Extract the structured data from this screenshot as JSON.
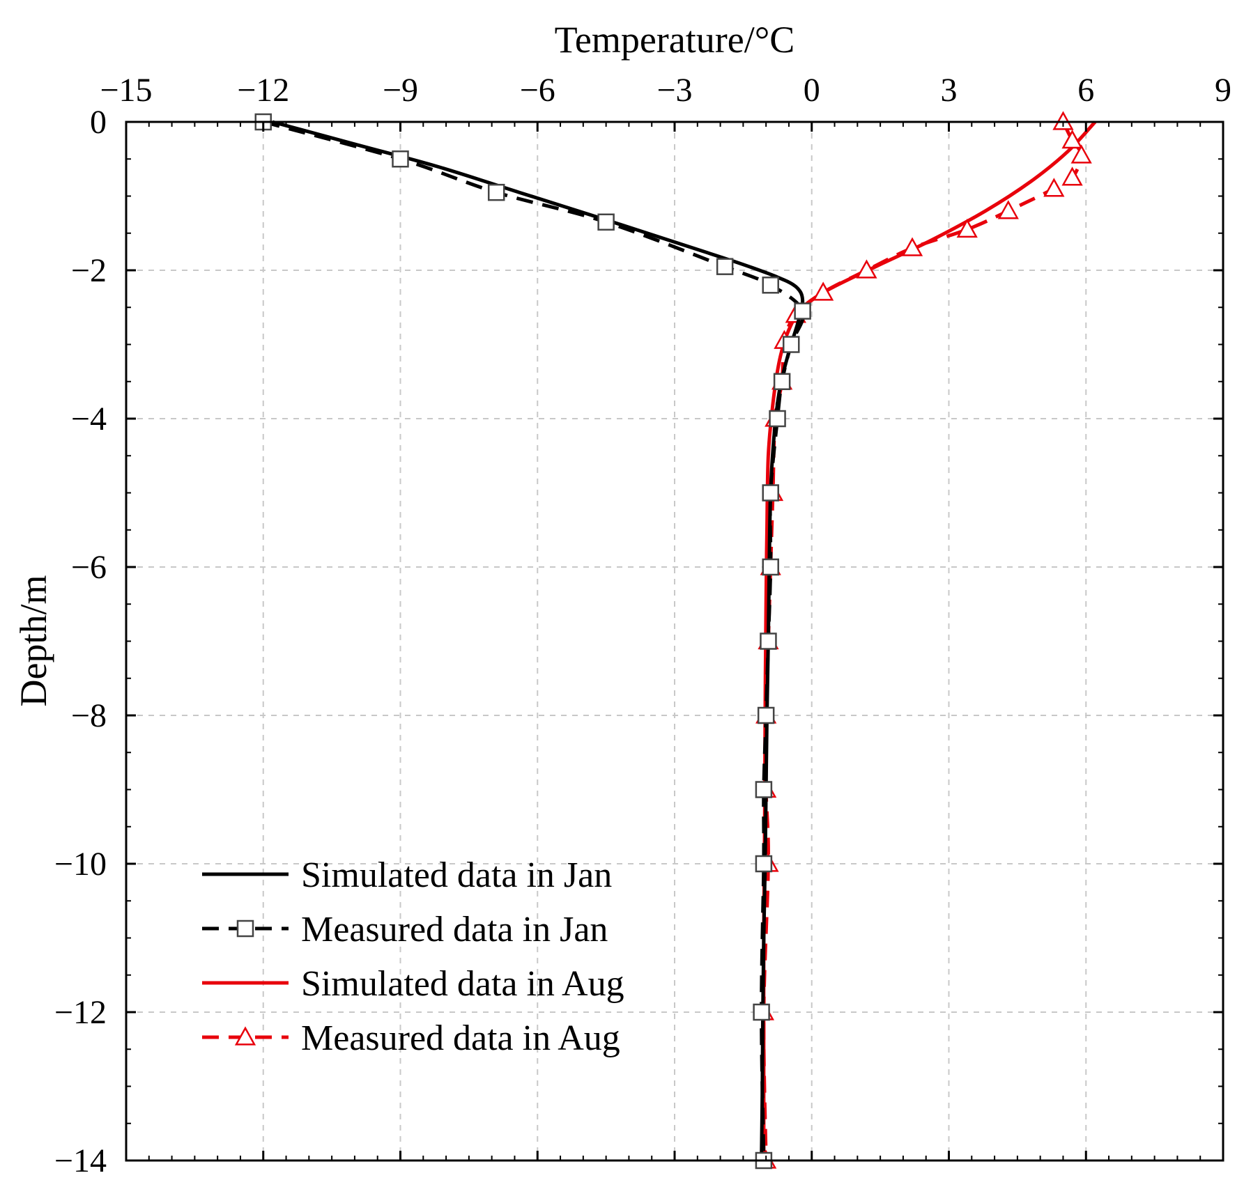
{
  "chart_data": {
    "type": "line",
    "title": "",
    "xlabel": "Temperature/°C",
    "ylabel": "Depth/m",
    "xlim": [
      -15,
      9
    ],
    "ylim": [
      -14,
      0
    ],
    "xticks": [
      -15,
      -12,
      -9,
      -6,
      -3,
      0,
      3,
      6,
      9
    ],
    "xtick_labels": [
      "−15",
      "−12",
      "−9",
      "−6",
      "−3",
      "0",
      "3",
      "6",
      "9"
    ],
    "yticks": [
      0,
      -2,
      -4,
      -6,
      -8,
      -10,
      -12,
      -14
    ],
    "ytick_labels": [
      "0",
      "−2",
      "−4",
      "−6",
      "−8",
      "−10",
      "−12",
      "−14"
    ],
    "x_axis_position": "top",
    "grid": true,
    "legend_position": "bottom-left",
    "series": [
      {
        "name": "Simulated data in Jan",
        "color": "#000000",
        "line_style": "solid",
        "marker": "none",
        "points": [
          {
            "x": -11.8,
            "y": 0
          },
          {
            "x": -10.0,
            "y": -0.3
          },
          {
            "x": -8.2,
            "y": -0.6
          },
          {
            "x": -6.4,
            "y": -0.95
          },
          {
            "x": -4.6,
            "y": -1.3
          },
          {
            "x": -3.0,
            "y": -1.62
          },
          {
            "x": -1.7,
            "y": -1.88
          },
          {
            "x": -0.8,
            "y": -2.08
          },
          {
            "x": -0.35,
            "y": -2.22
          },
          {
            "x": -0.2,
            "y": -2.4
          },
          {
            "x": -0.3,
            "y": -2.7
          },
          {
            "x": -0.5,
            "y": -3.1
          },
          {
            "x": -0.7,
            "y": -3.6
          },
          {
            "x": -0.82,
            "y": -4.2
          },
          {
            "x": -0.9,
            "y": -5.0
          },
          {
            "x": -0.93,
            "y": -6.0
          },
          {
            "x": -0.95,
            "y": -7.0
          },
          {
            "x": -0.98,
            "y": -8.0
          },
          {
            "x": -1.0,
            "y": -9.0
          },
          {
            "x": -1.02,
            "y": -10.0
          },
          {
            "x": -1.05,
            "y": -11.0
          },
          {
            "x": -1.07,
            "y": -12.0
          },
          {
            "x": -1.08,
            "y": -13.0
          },
          {
            "x": -1.1,
            "y": -14.0
          }
        ]
      },
      {
        "name": "Measured data in Jan",
        "color": "#000000",
        "line_style": "dashed",
        "marker": "square",
        "points": [
          {
            "x": -12.0,
            "y": 0
          },
          {
            "x": -9.0,
            "y": -0.5
          },
          {
            "x": -6.9,
            "y": -0.95
          },
          {
            "x": -4.5,
            "y": -1.35
          },
          {
            "x": -1.9,
            "y": -1.95
          },
          {
            "x": -0.9,
            "y": -2.2
          },
          {
            "x": -0.2,
            "y": -2.55
          },
          {
            "x": -0.45,
            "y": -3.0
          },
          {
            "x": -0.65,
            "y": -3.5
          },
          {
            "x": -0.75,
            "y": -4.0
          },
          {
            "x": -0.9,
            "y": -5.0
          },
          {
            "x": -0.9,
            "y": -6.0
          },
          {
            "x": -0.95,
            "y": -7.0
          },
          {
            "x": -1.0,
            "y": -8.0
          },
          {
            "x": -1.05,
            "y": -9.0
          },
          {
            "x": -1.05,
            "y": -10.0
          },
          {
            "x": -1.1,
            "y": -12.0
          },
          {
            "x": -1.05,
            "y": -14.0
          }
        ]
      },
      {
        "name": "Simulated data in Aug",
        "color": "#e8000b",
        "line_style": "solid",
        "marker": "none",
        "points": [
          {
            "x": 6.2,
            "y": 0
          },
          {
            "x": 5.6,
            "y": -0.4
          },
          {
            "x": 4.8,
            "y": -0.8
          },
          {
            "x": 3.8,
            "y": -1.2
          },
          {
            "x": 2.6,
            "y": -1.6
          },
          {
            "x": 1.4,
            "y": -1.95
          },
          {
            "x": 0.4,
            "y": -2.25
          },
          {
            "x": -0.2,
            "y": -2.5
          },
          {
            "x": -0.5,
            "y": -2.8
          },
          {
            "x": -0.7,
            "y": -3.2
          },
          {
            "x": -0.85,
            "y": -3.8
          },
          {
            "x": -0.95,
            "y": -4.5
          },
          {
            "x": -0.98,
            "y": -5.5
          },
          {
            "x": -1.0,
            "y": -6.5
          },
          {
            "x": -1.02,
            "y": -8.0
          },
          {
            "x": -1.03,
            "y": -9.5
          },
          {
            "x": -1.05,
            "y": -11.0
          },
          {
            "x": -1.05,
            "y": -12.5
          },
          {
            "x": -1.05,
            "y": -14.0
          }
        ]
      },
      {
        "name": "Measured data in Aug",
        "color": "#e8000b",
        "line_style": "dashed",
        "marker": "triangle",
        "points": [
          {
            "x": 5.5,
            "y": 0
          },
          {
            "x": 5.7,
            "y": -0.25
          },
          {
            "x": 5.9,
            "y": -0.45
          },
          {
            "x": 5.7,
            "y": -0.75
          },
          {
            "x": 5.3,
            "y": -0.9
          },
          {
            "x": 4.3,
            "y": -1.2
          },
          {
            "x": 3.4,
            "y": -1.45
          },
          {
            "x": 2.2,
            "y": -1.7
          },
          {
            "x": 1.2,
            "y": -2.0
          },
          {
            "x": 0.25,
            "y": -2.3
          },
          {
            "x": -0.35,
            "y": -2.6
          },
          {
            "x": -0.6,
            "y": -2.95
          },
          {
            "x": -0.65,
            "y": -3.5
          },
          {
            "x": -0.8,
            "y": -4.0
          },
          {
            "x": -0.85,
            "y": -5.0
          },
          {
            "x": -0.9,
            "y": -6.0
          },
          {
            "x": -0.95,
            "y": -7.0
          },
          {
            "x": -1.0,
            "y": -8.0
          },
          {
            "x": -1.0,
            "y": -9.0
          },
          {
            "x": -0.95,
            "y": -10.0
          },
          {
            "x": -1.05,
            "y": -12.0
          },
          {
            "x": -1.0,
            "y": -14.0
          }
        ]
      }
    ]
  }
}
